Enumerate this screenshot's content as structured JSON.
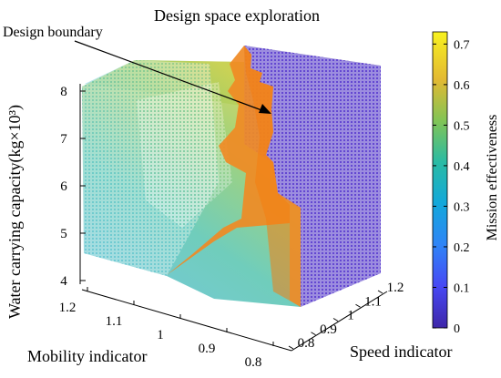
{
  "chart_data": {
    "type": "scatter",
    "title": "Design space exploration",
    "annotation": "Design boundary",
    "xlabel": "Mobility indicator",
    "ylabel": "Speed indicator",
    "zlabel": "Water carrying capacity(kg×10³)",
    "x_ticks": [
      "1.2",
      "1.1",
      "1",
      "0.9",
      "0.8"
    ],
    "y_ticks": [
      "0.8",
      "0.9",
      "1",
      "1.1",
      "1.2"
    ],
    "z_ticks": [
      "4",
      "5",
      "6",
      "7",
      "8"
    ],
    "xlim": [
      0.8,
      1.2
    ],
    "ylim": [
      0.8,
      1.2
    ],
    "zlim": [
      4,
      8
    ],
    "colorbar": {
      "label": "Mission effectiveness",
      "ticks": [
        "0",
        "0.1",
        "0.2",
        "0.3",
        "0.4",
        "0.5",
        "0.6",
        "0.7"
      ],
      "range": [
        0,
        0.73
      ],
      "colormap": "parula"
    },
    "boundary_color": "#f08a24",
    "series": [
      {
        "values": [
          {
            "x": 1.18,
            "y": 0.85,
            "z": 4.3,
            "c": 0.3
          },
          {
            "x": 1.1,
            "y": 0.88,
            "z": 5.0,
            "c": 0.36
          },
          {
            "x": 1.0,
            "y": 0.9,
            "z": 5.8,
            "c": 0.45
          },
          {
            "x": 0.95,
            "y": 0.92,
            "z": 6.5,
            "c": 0.52
          },
          {
            "x": 1.05,
            "y": 0.95,
            "z": 7.2,
            "c": 0.55
          },
          {
            "x": 0.9,
            "y": 0.88,
            "z": 7.6,
            "c": 0.62
          },
          {
            "x": 1.15,
            "y": 0.82,
            "z": 6.0,
            "c": 0.38
          },
          {
            "x": 0.85,
            "y": 0.86,
            "z": 4.5,
            "c": 0.34
          },
          {
            "x": 0.88,
            "y": 1.05,
            "z": 7.5,
            "c": 0.02
          },
          {
            "x": 0.82,
            "y": 1.15,
            "z": 6.0,
            "c": 0.04
          },
          {
            "x": 0.84,
            "y": 1.1,
            "z": 5.0,
            "c": 0.05
          }
        ]
      }
    ]
  }
}
